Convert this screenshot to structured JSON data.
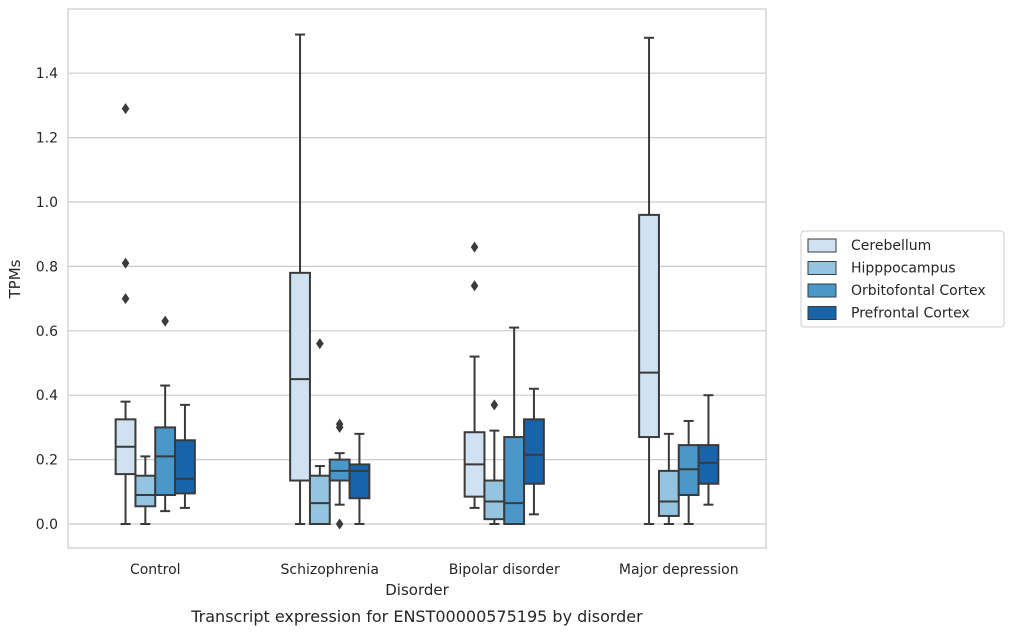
{
  "chart_data": {
    "type": "box",
    "title": "",
    "caption": "Transcript expression for ENST00000575195 by disorder",
    "xlabel": "Disorder",
    "ylabel": "TPMs",
    "ylim": [
      -0.075,
      1.57
    ],
    "yticks": [
      0.0,
      0.2,
      0.4,
      0.6,
      0.8,
      1.0,
      1.2,
      1.4
    ],
    "ytick_labels": [
      "0.0",
      "0.2",
      "0.4",
      "0.6",
      "0.8",
      "1.0",
      "1.2",
      "1.4"
    ],
    "grid": true,
    "legend_position": "right",
    "categories": [
      "Control",
      "Schizophrenia",
      "Bipolar disorder",
      "Major depression"
    ],
    "series": [
      {
        "name": "Cerebellum",
        "color": "#d0e1f2",
        "boxes": [
          {
            "whislo": 0.0,
            "q1": 0.155,
            "med": 0.24,
            "q3": 0.325,
            "whishi": 0.38,
            "fliers": [
              0.7,
              0.81,
              1.29
            ]
          },
          {
            "whislo": 0.0,
            "q1": 0.135,
            "med": 0.45,
            "q3": 0.78,
            "whishi": 1.52,
            "fliers": []
          },
          {
            "whislo": 0.05,
            "q1": 0.085,
            "med": 0.185,
            "q3": 0.285,
            "whishi": 0.52,
            "fliers": [
              0.74,
              0.86
            ]
          },
          {
            "whislo": 0.0,
            "q1": 0.27,
            "med": 0.47,
            "q3": 0.96,
            "whishi": 1.51,
            "fliers": []
          }
        ]
      },
      {
        "name": "Hipppocampus",
        "color": "#94c4df",
        "boxes": [
          {
            "whislo": 0.0,
            "q1": 0.055,
            "med": 0.09,
            "q3": 0.15,
            "whishi": 0.21,
            "fliers": []
          },
          {
            "whislo": 0.0,
            "q1": 0.0,
            "med": 0.065,
            "q3": 0.15,
            "whishi": 0.18,
            "fliers": [
              0.56
            ]
          },
          {
            "whislo": 0.0,
            "q1": 0.015,
            "med": 0.07,
            "q3": 0.135,
            "whishi": 0.29,
            "fliers": [
              0.37
            ]
          },
          {
            "whislo": 0.0,
            "q1": 0.025,
            "med": 0.07,
            "q3": 0.165,
            "whishi": 0.28,
            "fliers": []
          }
        ]
      },
      {
        "name": "Orbitofontal Cortex",
        "color": "#4a98c9",
        "boxes": [
          {
            "whislo": 0.04,
            "q1": 0.09,
            "med": 0.21,
            "q3": 0.3,
            "whishi": 0.43,
            "fliers": [
              0.63
            ]
          },
          {
            "whislo": 0.06,
            "q1": 0.135,
            "med": 0.165,
            "q3": 0.2,
            "whishi": 0.22,
            "fliers": [
              0.0,
              0.3,
              0.31
            ]
          },
          {
            "whislo": 0.0,
            "q1": 0.0,
            "med": 0.065,
            "q3": 0.27,
            "whishi": 0.61,
            "fliers": []
          },
          {
            "whislo": 0.0,
            "q1": 0.09,
            "med": 0.17,
            "q3": 0.245,
            "whishi": 0.32,
            "fliers": []
          }
        ]
      },
      {
        "name": "Prefrontal Cortex",
        "color": "#1764ab",
        "boxes": [
          {
            "whislo": 0.05,
            "q1": 0.095,
            "med": 0.14,
            "q3": 0.26,
            "whishi": 0.37,
            "fliers": []
          },
          {
            "whislo": 0.0,
            "q1": 0.08,
            "med": 0.165,
            "q3": 0.185,
            "whishi": 0.28,
            "fliers": []
          },
          {
            "whislo": 0.03,
            "q1": 0.125,
            "med": 0.215,
            "q3": 0.325,
            "whishi": 0.42,
            "fliers": []
          },
          {
            "whislo": 0.06,
            "q1": 0.125,
            "med": 0.19,
            "q3": 0.245,
            "whishi": 0.4,
            "fliers": []
          }
        ]
      }
    ]
  }
}
